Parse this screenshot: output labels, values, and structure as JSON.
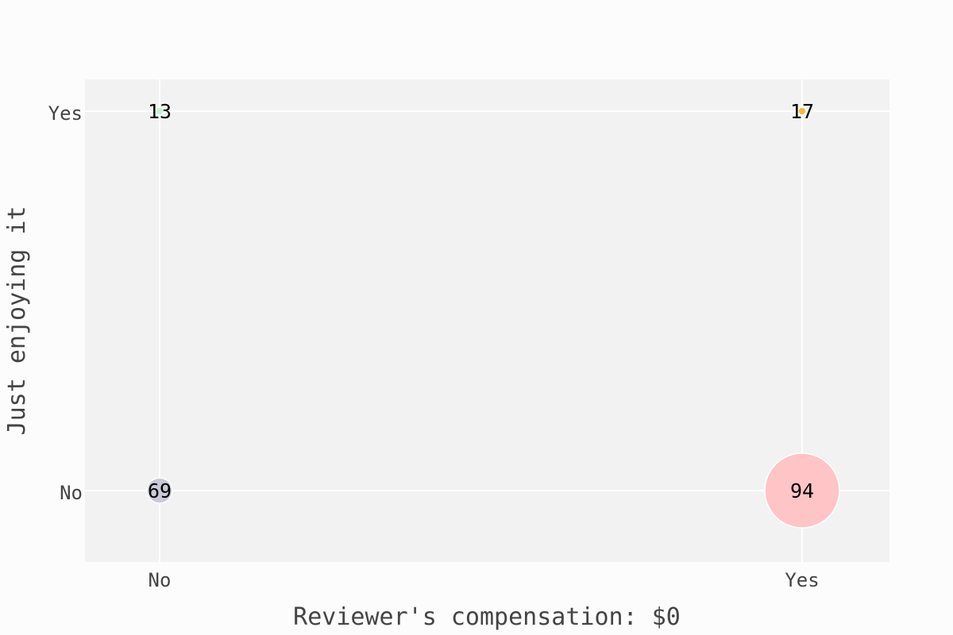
{
  "chart_data": {
    "type": "scatter",
    "xlabel": "Reviewer's compensation: $0",
    "ylabel": "Just enjoying it",
    "x_categories": [
      "No",
      "Yes"
    ],
    "y_categories": [
      "No",
      "Yes"
    ],
    "grid": true,
    "points": [
      {
        "x": "No",
        "y": "Yes",
        "value": 13,
        "color": "#c8f0d0"
      },
      {
        "x": "Yes",
        "y": "Yes",
        "value": 17,
        "color": "#f5b942"
      },
      {
        "x": "No",
        "y": "No",
        "value": 69,
        "color": "#c8c8d8"
      },
      {
        "x": "Yes",
        "y": "No",
        "value": 94,
        "color": "#ffc4c6"
      }
    ]
  },
  "colors": {
    "plot_background": "#f2f2f2",
    "grid": "#ffffff",
    "text": "#444444"
  }
}
